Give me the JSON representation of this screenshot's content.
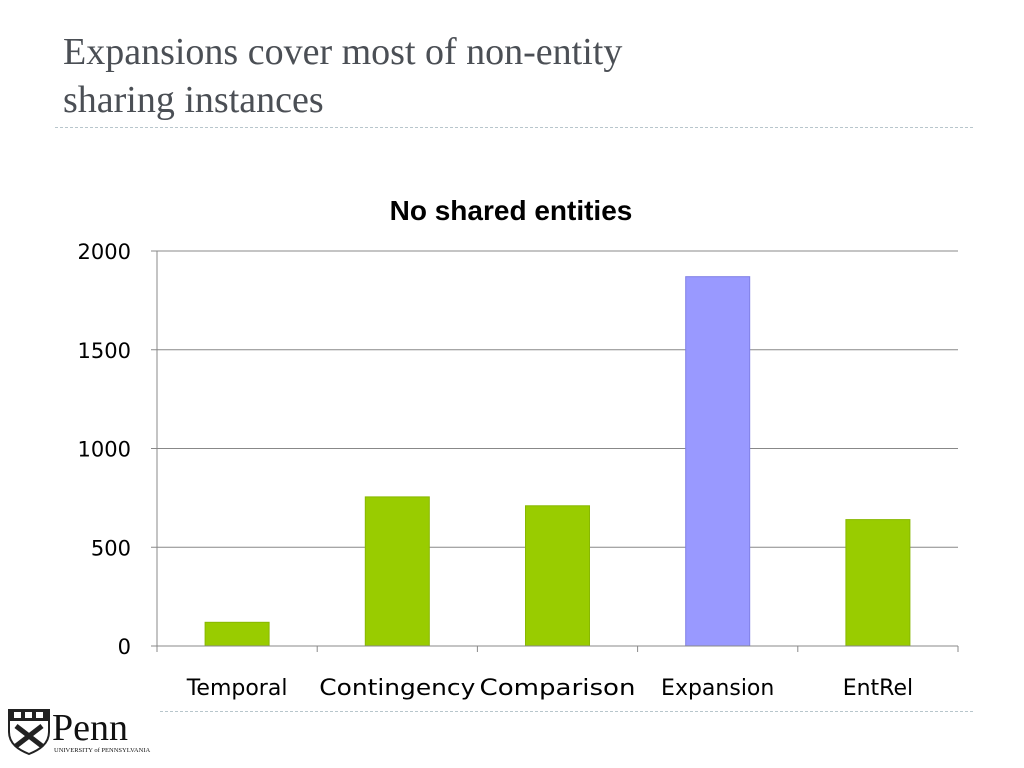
{
  "slide": {
    "title_line1": "Expansions cover most of non-entity",
    "title_line2": "sharing instances"
  },
  "logo": {
    "wordmark": "Penn",
    "subtitle": "UNIVERSITY of PENNSYLVANIA"
  },
  "chart_data": {
    "type": "bar",
    "title": "No shared entities",
    "xlabel": "",
    "ylabel": "",
    "categories": [
      "Temporal",
      "Contingency",
      "Comparison",
      "Expansion",
      "EntRel"
    ],
    "values": [
      120,
      755,
      710,
      1870,
      640
    ],
    "ylim": [
      0,
      2000
    ],
    "yticks": [
      0,
      500,
      1000,
      1500,
      2000
    ],
    "grid": true,
    "legend": "none",
    "colors": {
      "default_bar": "#99cc00",
      "highlight_bar": "#9999ff",
      "highlight_category": "Expansion",
      "grid": "#888888",
      "axis": "#888888"
    }
  }
}
